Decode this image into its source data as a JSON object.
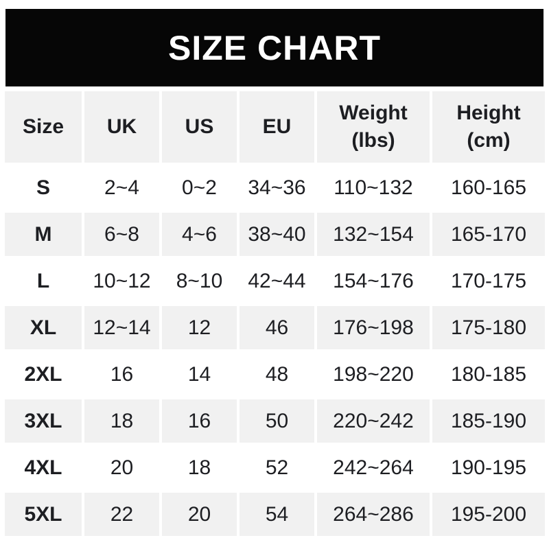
{
  "banner": {
    "title": "SIZE CHART"
  },
  "colors": {
    "banner_bg": "#060606",
    "banner_text": "#ffffff",
    "cell_bg_gray": "#f1f1f1",
    "cell_bg_white": "#ffffff",
    "text": "#1d1e22",
    "page_bg": "#ffffff"
  },
  "chart_data": {
    "type": "table",
    "title": "SIZE CHART",
    "columns": [
      "Size",
      "UK",
      "US",
      "EU",
      "Weight (lbs)",
      "Height (cm)"
    ],
    "header_lines": [
      {
        "line1": "Size",
        "line2": ""
      },
      {
        "line1": "UK",
        "line2": ""
      },
      {
        "line1": "US",
        "line2": ""
      },
      {
        "line1": "EU",
        "line2": ""
      },
      {
        "line1": "Weight",
        "line2": "(lbs)"
      },
      {
        "line1": "Height",
        "line2": "(cm)"
      }
    ],
    "rows": [
      [
        "S",
        "2~4",
        "0~2",
        "34~36",
        "110~132",
        "160-165"
      ],
      [
        "M",
        "6~8",
        "4~6",
        "38~40",
        "132~154",
        "165-170"
      ],
      [
        "L",
        "10~12",
        "8~10",
        "42~44",
        "154~176",
        "170-175"
      ],
      [
        "XL",
        "12~14",
        "12",
        "46",
        "176~198",
        "175-180"
      ],
      [
        "2XL",
        "16",
        "14",
        "48",
        "198~220",
        "180-185"
      ],
      [
        "3XL",
        "18",
        "16",
        "50",
        "220~242",
        "185-190"
      ],
      [
        "4XL",
        "20",
        "18",
        "52",
        "242~264",
        "190-195"
      ],
      [
        "5XL",
        "22",
        "20",
        "54",
        "264~286",
        "195-200"
      ]
    ],
    "layout": {
      "header_background": "gray",
      "body_row_backgrounds_alternate": [
        "white",
        "gray"
      ],
      "grid_lines": "white gaps between cells"
    }
  }
}
